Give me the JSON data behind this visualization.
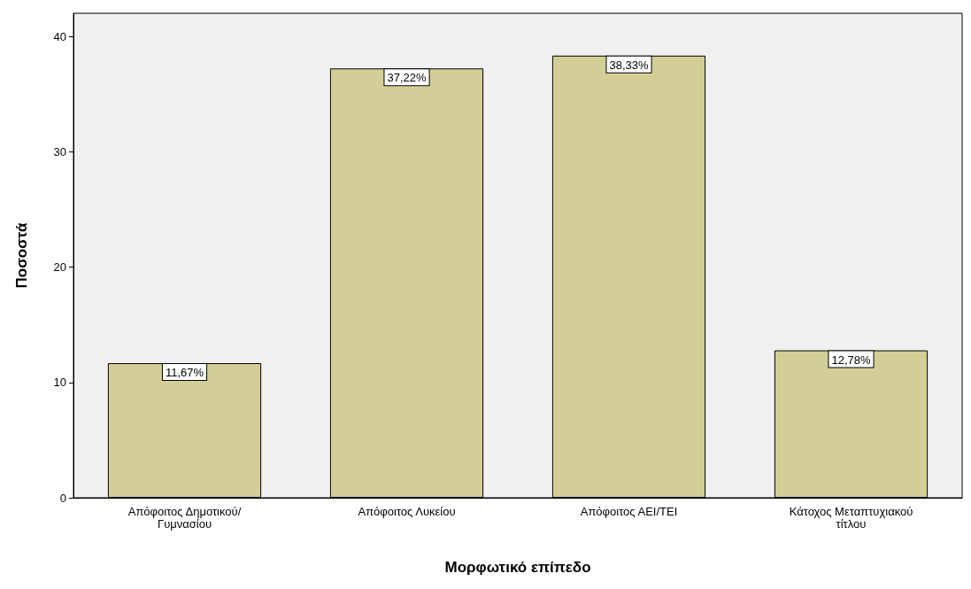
{
  "chart_data": {
    "type": "bar",
    "xlabel": "Μορφωτικό επίπεδο",
    "ylabel": "Ποσοστά",
    "categories": [
      "Απόφοιτος Δημοτικού/\nΓυμνασίου",
      "Απόφοιτος Λυκείου",
      "Απόφοιτος ΑΕΙ/ΤΕΙ",
      "Κάτοχος Μεταπτυχιακού\nτίτλου"
    ],
    "values": [
      11.67,
      37.22,
      38.33,
      12.78
    ],
    "value_labels": [
      "11,67%",
      "37,22%",
      "38,33%",
      "12,78%"
    ],
    "color": "#d3ce97",
    "ylim": [
      0,
      42
    ],
    "yticks": [
      0,
      10,
      20,
      30,
      40
    ],
    "grid": false
  }
}
